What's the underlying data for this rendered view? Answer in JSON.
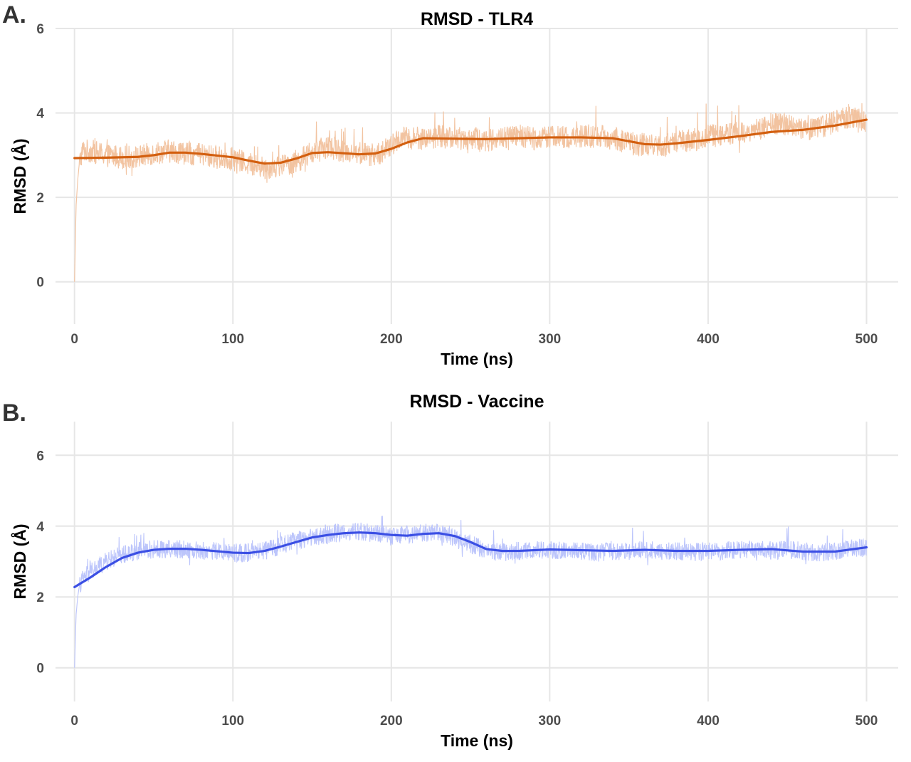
{
  "panels": [
    {
      "letter": "A."
    },
    {
      "letter": "B."
    }
  ],
  "chart_data": [
    {
      "type": "line",
      "title": "RMSD - TLR4",
      "xlabel": "Time (ns)",
      "ylabel": "RMSD (Å)",
      "xlim": [
        -12,
        520
      ],
      "ylim": [
        -1,
        6
      ],
      "xticks": [
        0,
        100,
        200,
        300,
        400,
        500
      ],
      "yticks": [
        0,
        2,
        4,
        6
      ],
      "grid": true,
      "colors": {
        "raw": "#f2c3a0",
        "smooth": "#d35f0f"
      },
      "series": [
        {
          "kind": "raw",
          "noise": 0.28,
          "x": [
            0,
            1,
            2,
            3,
            5,
            10,
            20,
            30,
            40,
            50,
            60,
            70,
            80,
            90,
            100,
            110,
            120,
            130,
            140,
            150,
            160,
            170,
            180,
            190,
            200,
            205,
            210,
            220,
            230,
            240,
            250,
            260,
            270,
            280,
            290,
            300,
            310,
            320,
            330,
            340,
            350,
            360,
            370,
            380,
            390,
            400,
            410,
            420,
            430,
            440,
            450,
            460,
            470,
            480,
            490,
            500
          ],
          "y": [
            0.0,
            1.8,
            2.4,
            2.8,
            3.1,
            3.1,
            3.0,
            2.95,
            2.95,
            3.05,
            3.1,
            3.05,
            3.0,
            2.95,
            2.9,
            2.8,
            2.7,
            2.75,
            2.85,
            3.05,
            3.2,
            3.1,
            3.05,
            3.0,
            3.2,
            3.4,
            3.4,
            3.4,
            3.45,
            3.4,
            3.4,
            3.35,
            3.4,
            3.45,
            3.4,
            3.45,
            3.4,
            3.45,
            3.45,
            3.4,
            3.3,
            3.25,
            3.2,
            3.3,
            3.35,
            3.45,
            3.5,
            3.55,
            3.6,
            3.7,
            3.75,
            3.6,
            3.65,
            3.8,
            3.9,
            3.8
          ]
        },
        {
          "kind": "smooth",
          "x": [
            0,
            20,
            40,
            50,
            60,
            70,
            80,
            100,
            110,
            120,
            130,
            140,
            150,
            160,
            180,
            190,
            200,
            210,
            220,
            240,
            260,
            280,
            300,
            320,
            340,
            350,
            360,
            370,
            380,
            400,
            420,
            440,
            460,
            480,
            500
          ],
          "y": [
            2.93,
            2.94,
            2.96,
            3.0,
            3.06,
            3.06,
            3.03,
            2.95,
            2.87,
            2.8,
            2.82,
            2.92,
            3.05,
            3.07,
            3.02,
            3.04,
            3.15,
            3.3,
            3.4,
            3.39,
            3.38,
            3.4,
            3.42,
            3.42,
            3.4,
            3.33,
            3.26,
            3.25,
            3.28,
            3.36,
            3.45,
            3.55,
            3.6,
            3.7,
            3.84
          ]
        }
      ]
    },
    {
      "type": "line",
      "title": "RMSD - Vaccine",
      "xlabel": "Time (ns)",
      "ylabel": "RMSD (Å)",
      "xlim": [
        -12,
        520
      ],
      "ylim": [
        -0.95,
        6.95
      ],
      "xticks": [
        0,
        100,
        200,
        300,
        400,
        500
      ],
      "yticks": [
        0,
        2,
        4,
        6
      ],
      "grid": true,
      "colors": {
        "raw": "#bcc5fb",
        "smooth": "#3b4fe4"
      },
      "series": [
        {
          "kind": "raw",
          "noise": 0.26,
          "x": [
            0,
            1,
            2,
            3,
            5,
            10,
            20,
            30,
            40,
            50,
            60,
            70,
            80,
            90,
            100,
            110,
            120,
            130,
            140,
            150,
            160,
            170,
            180,
            190,
            200,
            210,
            220,
            230,
            240,
            250,
            260,
            270,
            280,
            290,
            300,
            310,
            320,
            330,
            340,
            350,
            360,
            370,
            380,
            390,
            400,
            410,
            420,
            430,
            440,
            450,
            460,
            470,
            480,
            490,
            500
          ],
          "y": [
            0.0,
            1.5,
            2.0,
            2.3,
            2.5,
            2.7,
            3.0,
            3.2,
            3.3,
            3.35,
            3.35,
            3.35,
            3.3,
            3.3,
            3.25,
            3.25,
            3.3,
            3.45,
            3.6,
            3.7,
            3.75,
            3.85,
            3.85,
            3.8,
            3.7,
            3.75,
            3.8,
            3.85,
            3.65,
            3.5,
            3.3,
            3.25,
            3.3,
            3.3,
            3.35,
            3.3,
            3.3,
            3.25,
            3.3,
            3.3,
            3.35,
            3.3,
            3.3,
            3.25,
            3.3,
            3.3,
            3.35,
            3.35,
            3.3,
            3.35,
            3.3,
            3.25,
            3.3,
            3.35,
            3.4
          ]
        },
        {
          "kind": "smooth",
          "x": [
            0,
            10,
            20,
            30,
            40,
            50,
            60,
            70,
            80,
            90,
            100,
            110,
            120,
            130,
            140,
            150,
            160,
            170,
            180,
            190,
            200,
            210,
            220,
            230,
            240,
            250,
            260,
            270,
            280,
            290,
            300,
            320,
            340,
            360,
            380,
            400,
            420,
            440,
            460,
            480,
            500
          ],
          "y": [
            2.28,
            2.55,
            2.85,
            3.1,
            3.25,
            3.33,
            3.36,
            3.36,
            3.33,
            3.29,
            3.25,
            3.24,
            3.3,
            3.42,
            3.55,
            3.68,
            3.75,
            3.8,
            3.82,
            3.8,
            3.75,
            3.73,
            3.78,
            3.8,
            3.72,
            3.55,
            3.35,
            3.3,
            3.3,
            3.32,
            3.34,
            3.32,
            3.3,
            3.33,
            3.3,
            3.3,
            3.33,
            3.35,
            3.28,
            3.28,
            3.4
          ]
        }
      ]
    }
  ]
}
